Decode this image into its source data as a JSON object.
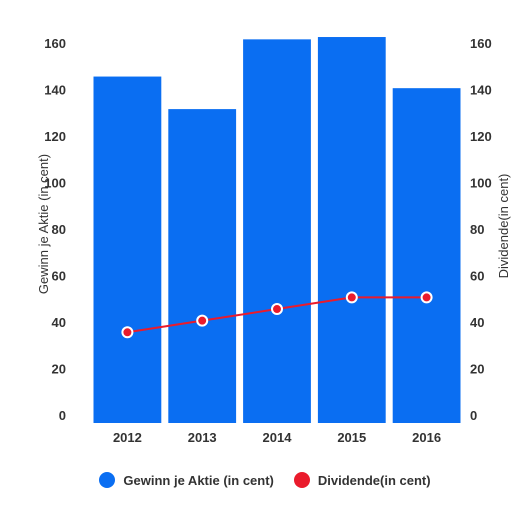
{
  "chart_data": {
    "type": "bar",
    "categories": [
      "2012",
      "2013",
      "2014",
      "2015",
      "2016"
    ],
    "series": [
      {
        "name": "Gewinn je Aktie (in cent)",
        "type": "bar",
        "axis": "left",
        "color": "#0a6ef2",
        "values": [
          146,
          132,
          162,
          163,
          141
        ]
      },
      {
        "name": "Dividende(in cent)",
        "type": "line",
        "axis": "right",
        "color": "#ea1b2c",
        "values": [
          36,
          41,
          46,
          51,
          51
        ]
      }
    ],
    "ylabel": "Gewinn je Aktie (in cent)",
    "y2label": "Dividende(in cent)",
    "ylim": [
      0,
      160
    ],
    "y2lim": [
      0,
      160
    ],
    "yticks": [
      "0",
      "20",
      "40",
      "60",
      "80",
      "100",
      "120",
      "140",
      "160"
    ],
    "grid": false,
    "legend_position": "bottom"
  }
}
